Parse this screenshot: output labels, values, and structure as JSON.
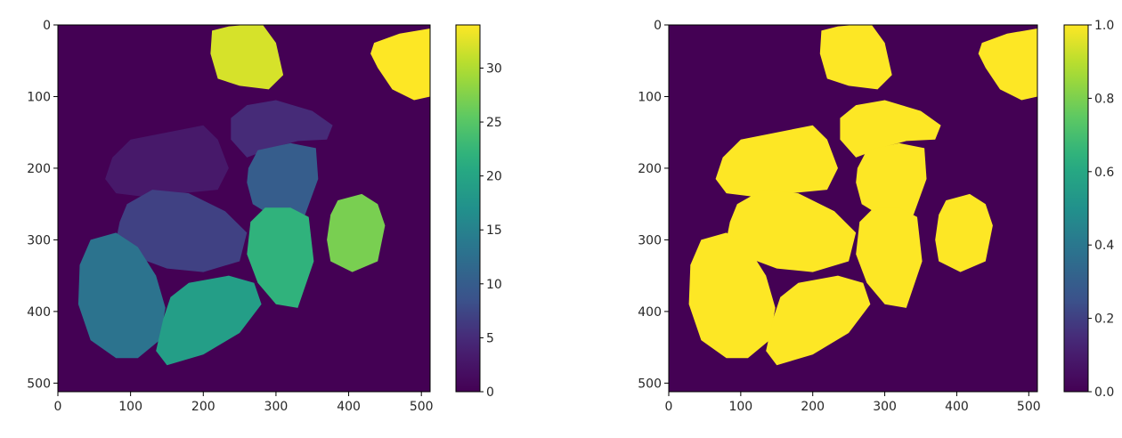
{
  "chart_data": [
    {
      "type": "heatmap",
      "title": "",
      "xlabel": "",
      "ylabel": "",
      "xlim": [
        0,
        512
      ],
      "ylim": [
        512,
        0
      ],
      "x_ticks": [
        0,
        100,
        200,
        300,
        400,
        500
      ],
      "y_ticks": [
        0,
        100,
        200,
        300,
        400,
        500
      ],
      "colormap": "viridis",
      "colorbar": {
        "range": [
          0,
          34
        ],
        "ticks": [
          0,
          5,
          10,
          15,
          20,
          25,
          30
        ]
      },
      "background_value": 0,
      "regions": [
        {
          "label": 1,
          "value": 32,
          "outline": [
            [
              212,
              8
            ],
            [
              235,
              2
            ],
            [
              258,
              0
            ],
            [
              282,
              0
            ],
            [
              300,
              25
            ],
            [
              310,
              70
            ],
            [
              290,
              90
            ],
            [
              250,
              85
            ],
            [
              220,
              75
            ],
            [
              210,
              40
            ]
          ]
        },
        {
          "label": 2,
          "value": 34,
          "outline": [
            [
              435,
              25
            ],
            [
              470,
              12
            ],
            [
              512,
              5
            ],
            [
              512,
              100
            ],
            [
              490,
              105
            ],
            [
              460,
              90
            ],
            [
              440,
              60
            ],
            [
              430,
              40
            ]
          ]
        },
        {
          "label": 3,
          "value": 3,
          "outline": [
            [
              65,
              215
            ],
            [
              75,
              185
            ],
            [
              100,
              160
            ],
            [
              150,
              150
            ],
            [
              200,
              140
            ],
            [
              220,
              160
            ],
            [
              235,
              200
            ],
            [
              220,
              230
            ],
            [
              170,
              235
            ],
            [
              120,
              240
            ],
            [
              80,
              235
            ]
          ]
        },
        {
          "label": 4,
          "value": 5,
          "outline": [
            [
              238,
              130
            ],
            [
              260,
              112
            ],
            [
              300,
              105
            ],
            [
              350,
              120
            ],
            [
              378,
              140
            ],
            [
              370,
              160
            ],
            [
              330,
              162
            ],
            [
              300,
              170
            ],
            [
              260,
              185
            ],
            [
              238,
              160
            ]
          ]
        },
        {
          "label": 5,
          "value": 10,
          "outline": [
            [
              262,
              200
            ],
            [
              275,
              175
            ],
            [
              320,
              165
            ],
            [
              355,
              172
            ],
            [
              358,
              215
            ],
            [
              340,
              265
            ],
            [
              300,
              270
            ],
            [
              268,
              250
            ],
            [
              260,
              220
            ]
          ]
        },
        {
          "label": 6,
          "value": 7,
          "outline": [
            [
              85,
              275
            ],
            [
              95,
              250
            ],
            [
              130,
              230
            ],
            [
              180,
              235
            ],
            [
              230,
              260
            ],
            [
              260,
              290
            ],
            [
              250,
              330
            ],
            [
              200,
              345
            ],
            [
              150,
              340
            ],
            [
              110,
              325
            ],
            [
              80,
              300
            ]
          ]
        },
        {
          "label": 7,
          "value": 22,
          "outline": [
            [
              265,
              275
            ],
            [
              285,
              255
            ],
            [
              320,
              255
            ],
            [
              345,
              268
            ],
            [
              352,
              330
            ],
            [
              330,
              395
            ],
            [
              300,
              390
            ],
            [
              275,
              360
            ],
            [
              260,
              320
            ]
          ]
        },
        {
          "label": 8,
          "value": 27,
          "outline": [
            [
              375,
              265
            ],
            [
              385,
              245
            ],
            [
              418,
              236
            ],
            [
              440,
              250
            ],
            [
              450,
              280
            ],
            [
              440,
              330
            ],
            [
              405,
              345
            ],
            [
              375,
              330
            ],
            [
              370,
              300
            ]
          ]
        },
        {
          "label": 9,
          "value": 13,
          "outline": [
            [
              30,
              335
            ],
            [
              45,
              300
            ],
            [
              80,
              290
            ],
            [
              110,
              310
            ],
            [
              135,
              350
            ],
            [
              148,
              395
            ],
            [
              140,
              440
            ],
            [
              110,
              465
            ],
            [
              80,
              465
            ],
            [
              45,
              440
            ],
            [
              28,
              390
            ]
          ]
        },
        {
          "label": 10,
          "value": 19,
          "outline": [
            [
              145,
              410
            ],
            [
              155,
              380
            ],
            [
              180,
              360
            ],
            [
              235,
              350
            ],
            [
              270,
              360
            ],
            [
              280,
              390
            ],
            [
              250,
              430
            ],
            [
              200,
              460
            ],
            [
              150,
              475
            ],
            [
              135,
              455
            ]
          ]
        }
      ]
    },
    {
      "type": "heatmap",
      "title": "",
      "xlabel": "",
      "ylabel": "",
      "xlim": [
        0,
        512
      ],
      "ylim": [
        512,
        0
      ],
      "x_ticks": [
        0,
        100,
        200,
        300,
        400,
        500
      ],
      "y_ticks": [
        0,
        100,
        200,
        300,
        400,
        500
      ],
      "colormap": "viridis",
      "colorbar": {
        "range": [
          0,
          1
        ],
        "ticks": [
          0.0,
          0.2,
          0.4,
          0.6,
          0.8,
          1.0
        ],
        "tick_labels": [
          "0.0",
          "0.2",
          "0.4",
          "0.6",
          "0.8",
          "1.0"
        ]
      },
      "background_value": 0,
      "foreground_value": 1,
      "note_regions_from": "same outlines as first panel, binary mask"
    }
  ]
}
